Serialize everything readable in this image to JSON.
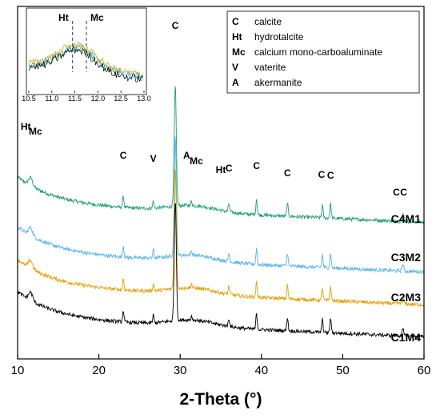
{
  "chart_data": {
    "type": "line",
    "title": "",
    "xlabel": "2-Theta (°)",
    "ylabel": "",
    "xlim": [
      10,
      60
    ],
    "xticks": [
      "10",
      "20",
      "30",
      "40",
      "50",
      "60"
    ],
    "grid": false,
    "series": [
      {
        "name": "C4M1",
        "color": "#1f9e72",
        "base": 0.0
      },
      {
        "name": "C3M2",
        "color": "#56b4e9",
        "base": 0.0
      },
      {
        "name": "C2M3",
        "color": "#e69f00",
        "base": 0.0
      },
      {
        "name": "C1M4",
        "color": "#000000",
        "base": 0.0
      }
    ],
    "peak_annotations": [
      {
        "label": "Ht",
        "x": 11.0
      },
      {
        "label": "Mc",
        "x": 12.2
      },
      {
        "label": "C",
        "x": 23.0
      },
      {
        "label": "V",
        "x": 26.7
      },
      {
        "label": "C",
        "x": 29.4
      },
      {
        "label": "A",
        "x": 30.8
      },
      {
        "label": "Mc",
        "x": 32.0
      },
      {
        "label": "Ht",
        "x": 35.0
      },
      {
        "label": "C",
        "x": 36.0
      },
      {
        "label": "C",
        "x": 39.4
      },
      {
        "label": "C",
        "x": 43.2
      },
      {
        "label": "C",
        "x": 47.4
      },
      {
        "label": "C",
        "x": 48.5
      },
      {
        "label": "C",
        "x": 56.6
      },
      {
        "label": "C",
        "x": 57.5
      }
    ],
    "legend": {
      "placement": "top-right",
      "entries": [
        {
          "abbr": "C",
          "text": "calcite"
        },
        {
          "abbr": "Ht",
          "text": "hydrotalcite"
        },
        {
          "abbr": "Mc",
          "text": "calcium mono-carboaluminate"
        },
        {
          "abbr": "V",
          "text": "vaterite"
        },
        {
          "abbr": "A",
          "text": "akermanite"
        }
      ]
    },
    "inset": {
      "placement": "top-left",
      "xlim": [
        10.5,
        13.0
      ],
      "xticks": [
        "10.5",
        "11.0",
        "11.5",
        "12.0",
        "12.5",
        "13.0"
      ],
      "markers": [
        {
          "label": "Ht",
          "x": 11.45
        },
        {
          "label": "Mc",
          "x": 11.75
        }
      ]
    }
  }
}
